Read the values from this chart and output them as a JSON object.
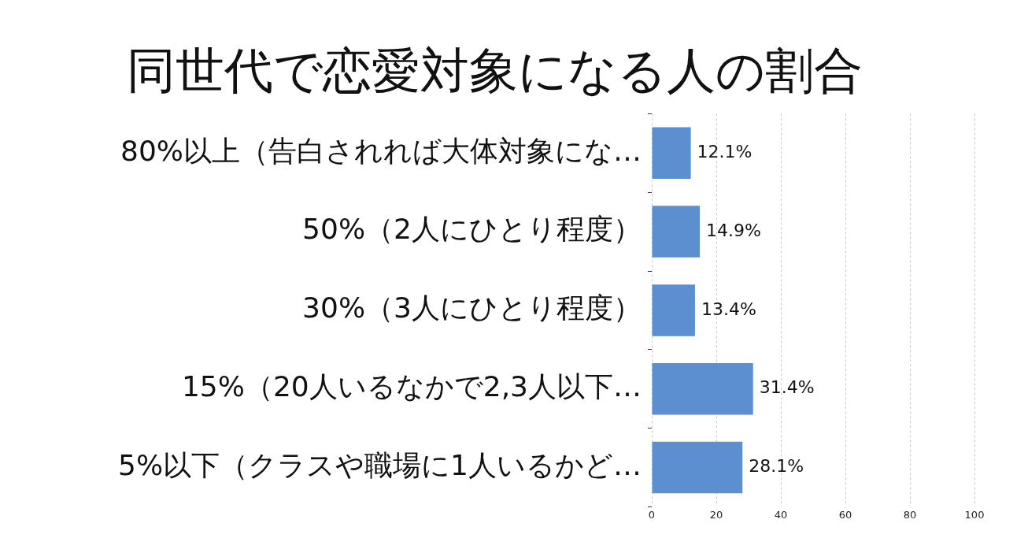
{
  "chart_data": {
    "type": "bar",
    "orientation": "horizontal",
    "title": "同世代で恋愛対象になる人の割合",
    "categories": [
      "80%以上（告白されれば大体対象にな…",
      "50%（2人にひとり程度）",
      "30%（3人にひとり程度）",
      "15%（20人いるなかで2,3人以下…",
      "5%以下（クラスや職場に1人いるかど…"
    ],
    "values": [
      12.1,
      14.9,
      13.4,
      31.4,
      28.1
    ],
    "value_labels": [
      "12.1%",
      "14.9%",
      "13.4%",
      "31.4%",
      "28.1%"
    ],
    "color": "#5b8fd0",
    "xlim": [
      0,
      100
    ],
    "xticks": [
      0,
      20,
      40,
      60,
      80,
      100
    ],
    "grid": "x",
    "legend": false
  }
}
